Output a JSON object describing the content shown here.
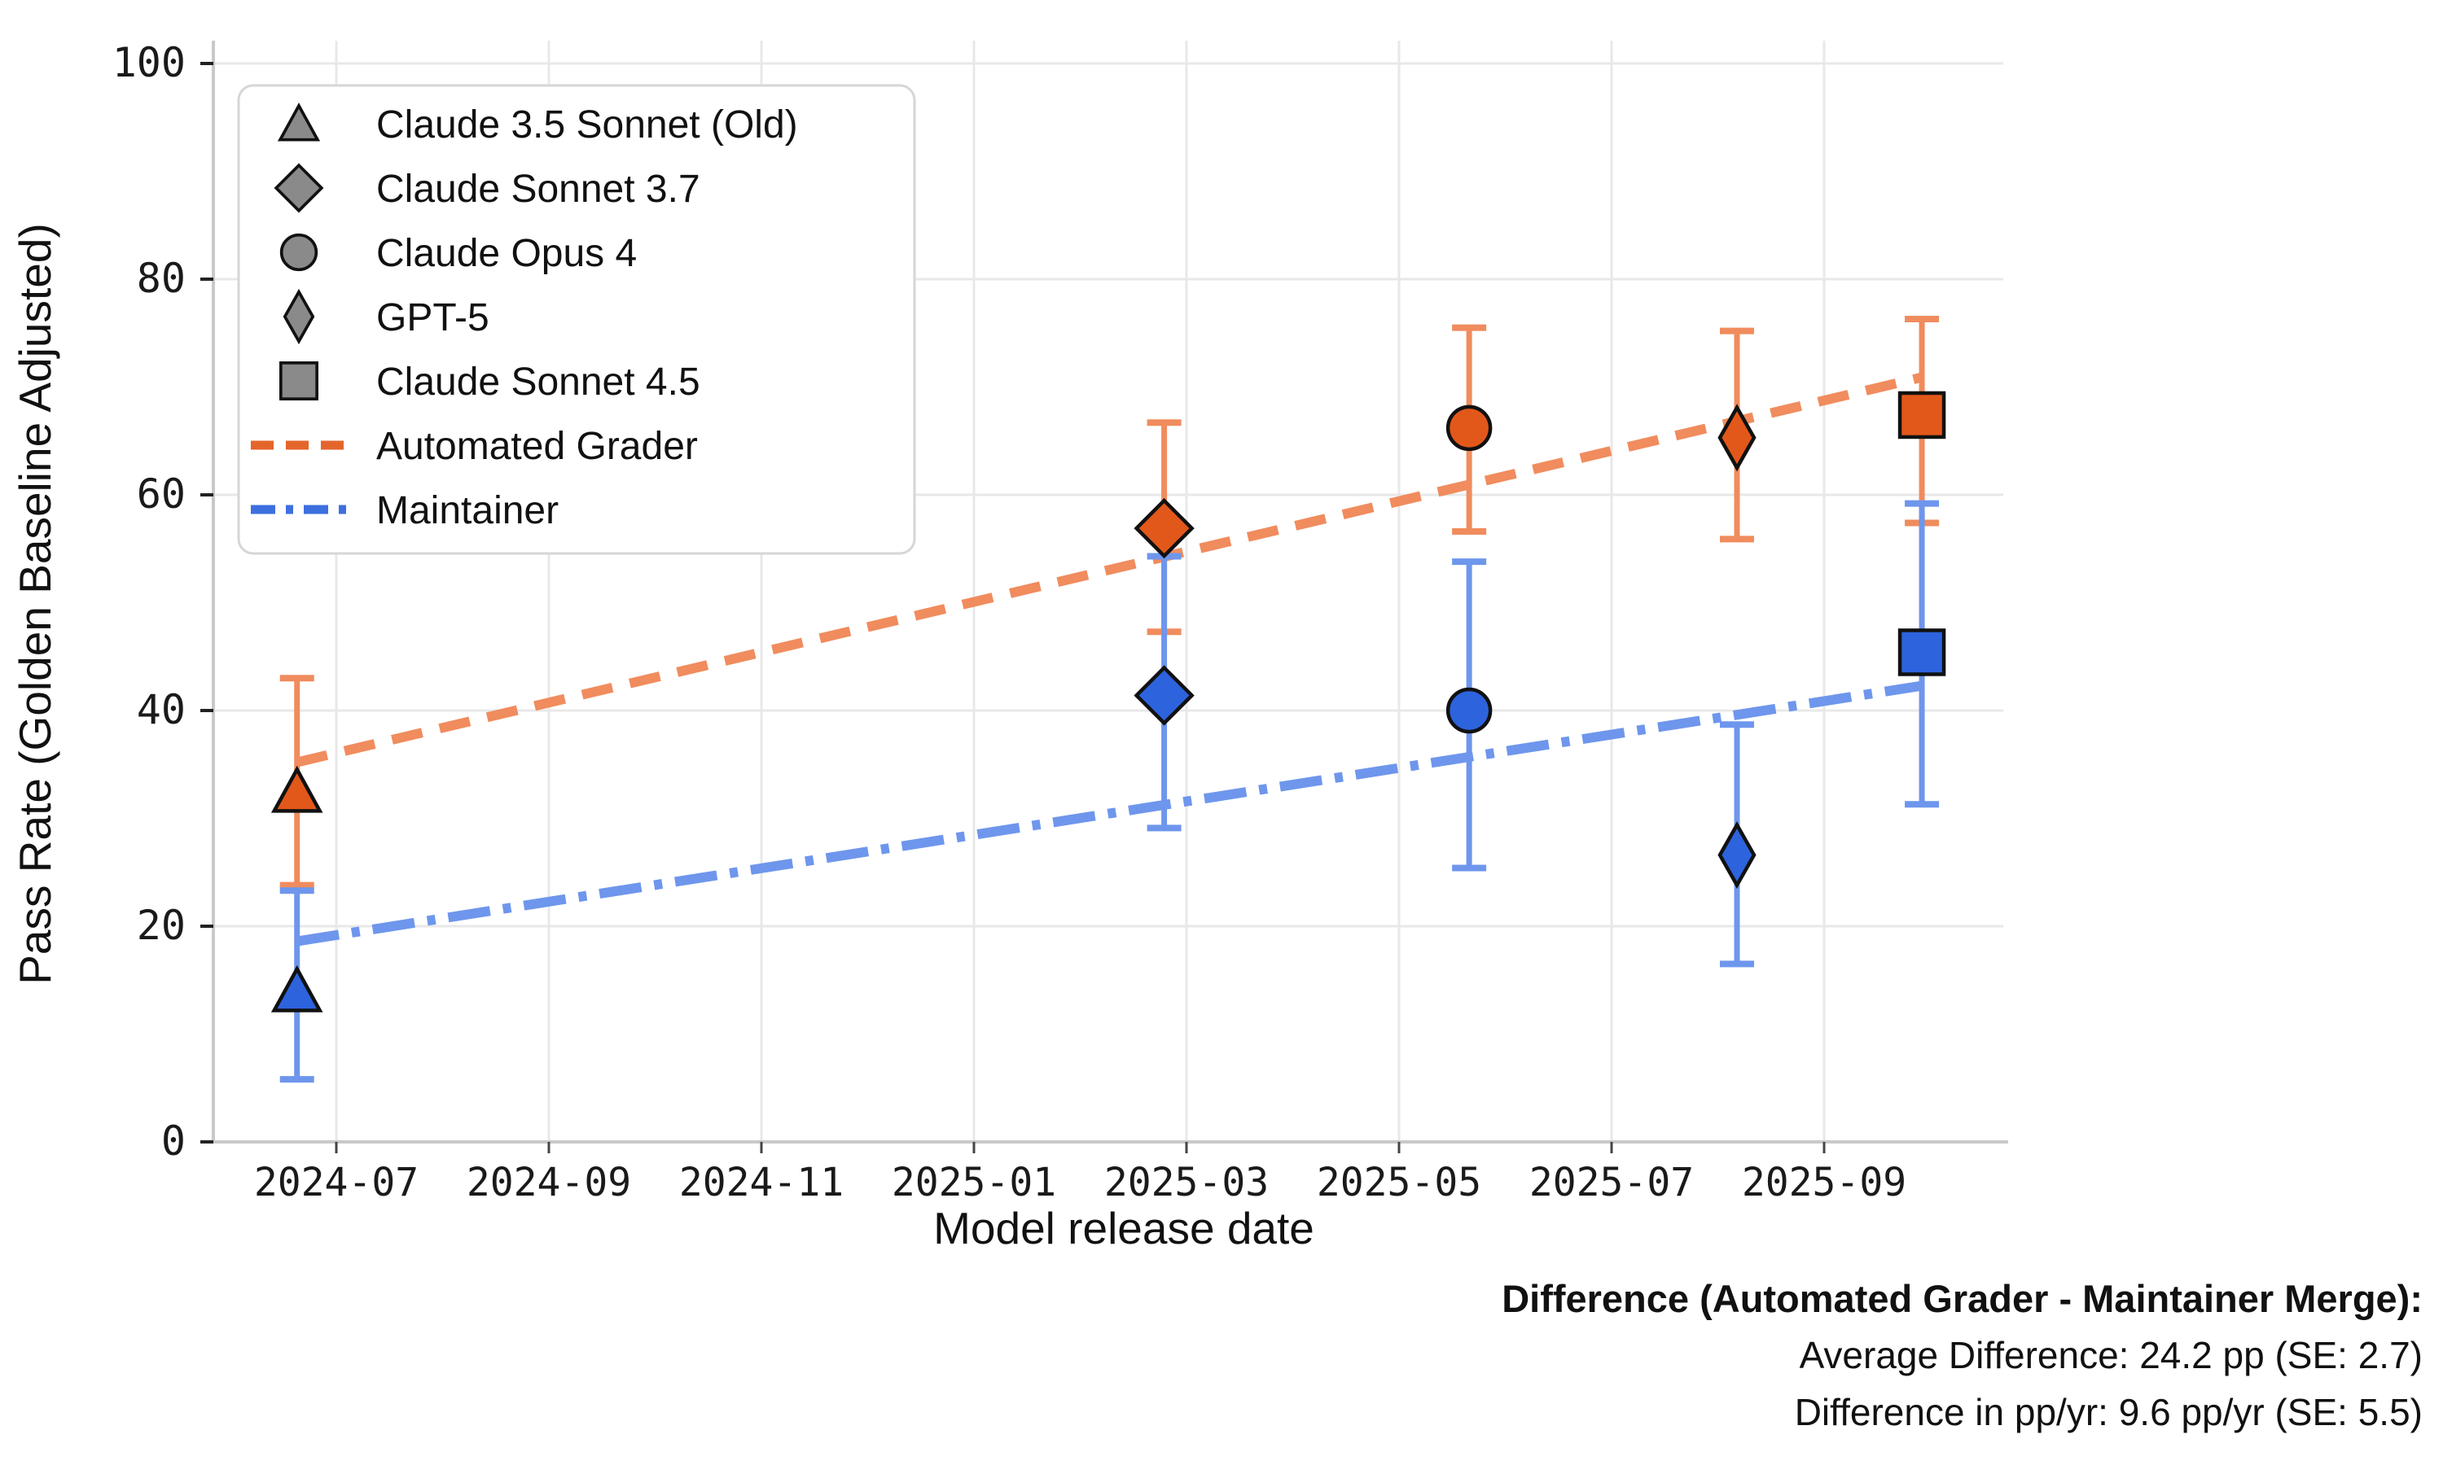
{
  "chart_data": {
    "type": "scatter",
    "title": "",
    "xlabel": "Model release date",
    "ylabel": "Pass Rate (Golden Baseline Adjusted)",
    "ylim": [
      0,
      103
    ],
    "grid": true,
    "legend_position": "upper left",
    "y_ticks": [
      0,
      20,
      40,
      60,
      80,
      100
    ],
    "x_ticks": [
      {
        "label": "2024-07",
        "m": 0
      },
      {
        "label": "2024-09",
        "m": 2
      },
      {
        "label": "2024-11",
        "m": 4
      },
      {
        "label": "2025-01",
        "m": 6
      },
      {
        "label": "2025-03",
        "m": 8
      },
      {
        "label": "2025-05",
        "m": 10
      },
      {
        "label": "2025-07",
        "m": 12
      },
      {
        "label": "2025-09",
        "m": 14
      }
    ],
    "models": [
      {
        "name": "Claude 3.5 Sonnet (Old)",
        "marker": "triangle",
        "release_m": -0.37
      },
      {
        "name": "Claude Sonnet 3.7",
        "marker": "diamond",
        "release_m": 7.79
      },
      {
        "name": "Claude Opus 4",
        "marker": "circle",
        "release_m": 10.66
      },
      {
        "name": "GPT-5",
        "marker": "thin-diamond",
        "release_m": 13.18
      },
      {
        "name": "Claude Sonnet 4.5",
        "marker": "square",
        "release_m": 14.92
      }
    ],
    "series": [
      {
        "name": "Automated Grader",
        "line_style": "dashed",
        "marker_color": "#e2581a",
        "line_color": "#f08c5e",
        "values": [
          32.5,
          56.9,
          66.2,
          65.3,
          67.4
        ],
        "err_low": [
          23.8,
          47.3,
          56.6,
          55.9,
          57.4
        ],
        "err_high": [
          43.0,
          66.7,
          75.5,
          75.2,
          76.3
        ],
        "trend": {
          "m_start": -0.37,
          "v_start": 35.2,
          "m_end": 14.92,
          "v_end": 70.9
        }
      },
      {
        "name": "Maintainer",
        "line_style": "dashdot",
        "marker_color": "#2d63dd",
        "line_color": "#6e96ec",
        "values": [
          14.0,
          41.4,
          40.0,
          26.6,
          45.4
        ],
        "err_low": [
          5.8,
          29.1,
          25.4,
          16.5,
          31.3
        ],
        "err_high": [
          23.3,
          54.3,
          53.8,
          38.7,
          59.2
        ],
        "trend": {
          "m_start": -0.37,
          "v_start": 18.6,
          "m_end": 14.92,
          "v_end": 42.3
        }
      }
    ],
    "legend_marker_color": "#8a8a8a",
    "annotation": {
      "title": "Difference (Automated Grader - Maintainer Merge):",
      "lines": [
        "Average Difference: 24.2 pp (SE: 2.7)",
        "Difference in pp/yr: 9.6 pp/yr (SE: 5.5)"
      ]
    }
  }
}
